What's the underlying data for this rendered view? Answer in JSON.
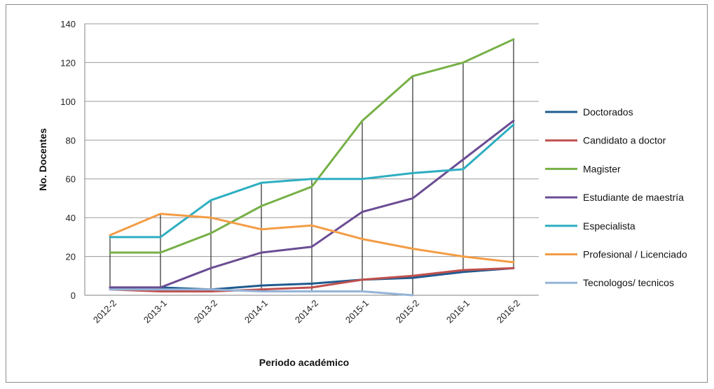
{
  "chart_data": {
    "type": "line",
    "title": "",
    "xlabel": "Periodo académico",
    "ylabel": "No. Docentes",
    "ylim": [
      0,
      140
    ],
    "yticks": [
      0,
      20,
      40,
      60,
      80,
      100,
      120,
      140
    ],
    "grid": "horizontal",
    "legend_position": "right",
    "categories": [
      "2012-2",
      "2013-1",
      "2013-2",
      "2014-1",
      "2014-2",
      "2015-1",
      "2015-2",
      "2016-1",
      "2016-2"
    ],
    "series": [
      {
        "name": "Doctorados",
        "color": "#1f5b8f",
        "values": [
          4,
          4,
          3,
          5,
          6,
          8,
          9,
          12,
          14
        ]
      },
      {
        "name": "Candidato a doctor",
        "color": "#c0504d",
        "values": [
          3,
          2,
          2,
          3,
          4,
          8,
          10,
          13,
          14
        ]
      },
      {
        "name": "Magister",
        "color": "#77b047",
        "values": [
          22,
          22,
          32,
          46,
          56,
          90,
          113,
          120,
          132
        ]
      },
      {
        "name": "Estudiante de maestría",
        "color": "#6a4c93",
        "values": [
          4,
          4,
          14,
          22,
          25,
          43,
          50,
          70,
          90
        ]
      },
      {
        "name": "Especialista",
        "color": "#2eaec1",
        "values": [
          30,
          30,
          49,
          58,
          60,
          60,
          63,
          65,
          88
        ]
      },
      {
        "name": "Profesional / Licenciado",
        "color": "#f39c45",
        "values": [
          31,
          42,
          40,
          34,
          36,
          29,
          24,
          20,
          17
        ]
      },
      {
        "name": "Tecnologos/ tecnicos",
        "color": "#95b3d7",
        "values": [
          3,
          3,
          3,
          2,
          2,
          2,
          0,
          null,
          null
        ]
      }
    ]
  }
}
